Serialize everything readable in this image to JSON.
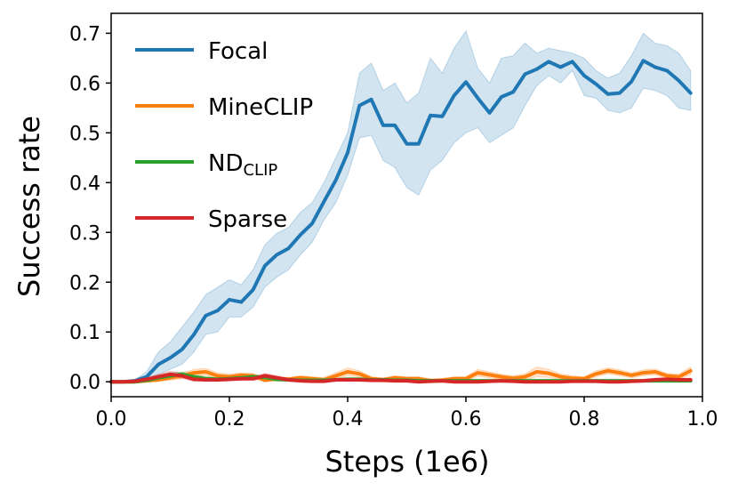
{
  "chart_data": {
    "type": "line",
    "title": "",
    "xlabel": "Steps (1e6)",
    "ylabel": "Success rate",
    "xlim": [
      0.0,
      1.0
    ],
    "ylim": [
      -0.03,
      0.74
    ],
    "xticks": [
      0.0,
      0.2,
      0.4,
      0.6,
      0.8,
      1.0
    ],
    "xtick_labels": [
      "0.0",
      "0.2",
      "0.4",
      "0.6",
      "0.8",
      "1.0"
    ],
    "yticks": [
      0.0,
      0.1,
      0.2,
      0.3,
      0.4,
      0.5,
      0.6,
      0.7
    ],
    "ytick_labels": [
      "0.0",
      "0.1",
      "0.2",
      "0.3",
      "0.4",
      "0.5",
      "0.6",
      "0.7"
    ],
    "grid": false,
    "legend_position": "top-left",
    "x": [
      0.0,
      0.02,
      0.04,
      0.06,
      0.08,
      0.1,
      0.12,
      0.14,
      0.16,
      0.18,
      0.2,
      0.22,
      0.24,
      0.26,
      0.28,
      0.3,
      0.32,
      0.34,
      0.36,
      0.38,
      0.4,
      0.42,
      0.44,
      0.46,
      0.48,
      0.5,
      0.52,
      0.54,
      0.56,
      0.58,
      0.6,
      0.62,
      0.64,
      0.66,
      0.68,
      0.7,
      0.72,
      0.74,
      0.76,
      0.78,
      0.8,
      0.82,
      0.84,
      0.86,
      0.88,
      0.9,
      0.92,
      0.94,
      0.96,
      0.98
    ],
    "series": [
      {
        "name": "Focal",
        "sub": "",
        "color": "#1f77b4",
        "values": [
          0.0,
          0.0,
          0.002,
          0.01,
          0.035,
          0.048,
          0.065,
          0.095,
          0.133,
          0.143,
          0.165,
          0.16,
          0.185,
          0.233,
          0.255,
          0.268,
          0.295,
          0.318,
          0.362,
          0.405,
          0.46,
          0.555,
          0.567,
          0.515,
          0.515,
          0.478,
          0.478,
          0.535,
          0.533,
          0.575,
          0.602,
          0.57,
          0.54,
          0.572,
          0.582,
          0.618,
          0.628,
          0.643,
          0.632,
          0.643,
          0.615,
          0.598,
          0.578,
          0.58,
          0.603,
          0.645,
          0.632,
          0.625,
          0.605,
          0.58
        ],
        "upper": [
          0.0,
          0.0,
          0.004,
          0.02,
          0.06,
          0.08,
          0.11,
          0.14,
          0.175,
          0.19,
          0.205,
          0.195,
          0.225,
          0.275,
          0.298,
          0.31,
          0.34,
          0.36,
          0.4,
          0.45,
          0.5,
          0.62,
          0.64,
          0.585,
          0.6,
          0.56,
          0.58,
          0.65,
          0.62,
          0.67,
          0.705,
          0.63,
          0.6,
          0.65,
          0.655,
          0.68,
          0.66,
          0.67,
          0.665,
          0.66,
          0.65,
          0.625,
          0.61,
          0.62,
          0.655,
          0.7,
          0.68,
          0.675,
          0.66,
          0.625
        ],
        "lower": [
          0.0,
          0.0,
          0.0,
          0.003,
          0.015,
          0.025,
          0.035,
          0.06,
          0.095,
          0.1,
          0.13,
          0.13,
          0.15,
          0.19,
          0.21,
          0.225,
          0.255,
          0.28,
          0.325,
          0.36,
          0.415,
          0.49,
          0.495,
          0.445,
          0.43,
          0.39,
          0.375,
          0.425,
          0.445,
          0.48,
          0.5,
          0.51,
          0.48,
          0.495,
          0.51,
          0.555,
          0.595,
          0.615,
          0.6,
          0.625,
          0.575,
          0.57,
          0.545,
          0.54,
          0.55,
          0.59,
          0.585,
          0.575,
          0.55,
          0.545
        ]
      },
      {
        "name": "MineCLIP",
        "sub": "",
        "color": "#ff7f0e",
        "values": [
          0.0,
          0.0,
          0.0,
          0.002,
          0.004,
          0.008,
          0.012,
          0.018,
          0.02,
          0.012,
          0.01,
          0.013,
          0.012,
          0.003,
          0.006,
          0.005,
          0.008,
          0.006,
          0.004,
          0.012,
          0.02,
          0.016,
          0.006,
          0.004,
          0.008,
          0.006,
          0.006,
          0.002,
          0.003,
          0.006,
          0.006,
          0.018,
          0.014,
          0.01,
          0.007,
          0.01,
          0.02,
          0.017,
          0.01,
          0.007,
          0.006,
          0.016,
          0.022,
          0.018,
          0.013,
          0.018,
          0.02,
          0.012,
          0.01,
          0.022
        ],
        "upper": [
          0.0,
          0.0,
          0.0,
          0.004,
          0.008,
          0.013,
          0.018,
          0.025,
          0.027,
          0.018,
          0.015,
          0.018,
          0.017,
          0.008,
          0.01,
          0.009,
          0.012,
          0.01,
          0.009,
          0.018,
          0.028,
          0.022,
          0.01,
          0.008,
          0.012,
          0.01,
          0.01,
          0.006,
          0.007,
          0.01,
          0.01,
          0.025,
          0.02,
          0.015,
          0.012,
          0.016,
          0.03,
          0.025,
          0.016,
          0.012,
          0.01,
          0.022,
          0.028,
          0.024,
          0.018,
          0.024,
          0.026,
          0.017,
          0.015,
          0.03
        ],
        "lower": [
          0.0,
          0.0,
          0.0,
          0.0,
          0.001,
          0.003,
          0.006,
          0.011,
          0.013,
          0.006,
          0.005,
          0.008,
          0.007,
          0.0,
          0.002,
          0.001,
          0.004,
          0.002,
          0.0,
          0.006,
          0.012,
          0.01,
          0.002,
          0.0,
          0.004,
          0.002,
          0.002,
          0.0,
          0.0,
          0.002,
          0.002,
          0.011,
          0.008,
          0.005,
          0.002,
          0.004,
          0.01,
          0.009,
          0.004,
          0.002,
          0.002,
          0.01,
          0.016,
          0.012,
          0.008,
          0.012,
          0.014,
          0.007,
          0.005,
          0.014
        ]
      },
      {
        "name": "ND",
        "sub": "CLIP",
        "color": "#2ca02c",
        "values": [
          0.0,
          0.0,
          0.0,
          0.003,
          0.008,
          0.012,
          0.015,
          0.01,
          0.006,
          0.005,
          0.006,
          0.008,
          0.01,
          0.009,
          0.005,
          0.004,
          0.003,
          0.003,
          0.003,
          0.004,
          0.005,
          0.005,
          0.004,
          0.004,
          0.003,
          0.003,
          0.002,
          0.002,
          0.002,
          0.002,
          0.002,
          0.002,
          0.002,
          0.002,
          0.002,
          0.002,
          0.002,
          0.002,
          0.002,
          0.002,
          0.002,
          0.002,
          0.002,
          0.002,
          0.002,
          0.002,
          0.002,
          0.002,
          0.002,
          0.002
        ],
        "upper": [
          0.0,
          0.0,
          0.0,
          0.006,
          0.013,
          0.018,
          0.02,
          0.014,
          0.01,
          0.009,
          0.01,
          0.012,
          0.014,
          0.013,
          0.009,
          0.007,
          0.006,
          0.006,
          0.006,
          0.007,
          0.008,
          0.008,
          0.007,
          0.007,
          0.006,
          0.006,
          0.004,
          0.004,
          0.004,
          0.004,
          0.004,
          0.004,
          0.004,
          0.004,
          0.004,
          0.004,
          0.004,
          0.004,
          0.004,
          0.004,
          0.004,
          0.004,
          0.004,
          0.004,
          0.004,
          0.004,
          0.004,
          0.004,
          0.004,
          0.004
        ],
        "lower": [
          0.0,
          0.0,
          0.0,
          0.0,
          0.003,
          0.006,
          0.01,
          0.006,
          0.002,
          0.001,
          0.002,
          0.004,
          0.006,
          0.005,
          0.001,
          0.001,
          0.0,
          0.0,
          0.0,
          0.001,
          0.002,
          0.002,
          0.001,
          0.001,
          0.0,
          0.0,
          0.0,
          0.0,
          0.0,
          0.0,
          0.0,
          0.0,
          0.0,
          0.0,
          0.0,
          0.0,
          0.0,
          0.0,
          0.0,
          0.0,
          0.0,
          0.0,
          0.0,
          0.0,
          0.0,
          0.0,
          0.0,
          0.0,
          0.0,
          0.0
        ]
      },
      {
        "name": "Sparse",
        "sub": "",
        "color": "#d62728",
        "values": [
          0.0,
          0.0,
          0.001,
          0.005,
          0.01,
          0.015,
          0.012,
          0.005,
          0.004,
          0.004,
          0.005,
          0.006,
          0.006,
          0.012,
          0.008,
          0.004,
          0.002,
          0.001,
          0.001,
          0.004,
          0.004,
          0.004,
          0.003,
          0.003,
          0.002,
          0.002,
          0.0,
          0.001,
          0.002,
          0.0,
          0.0,
          0.0,
          0.001,
          0.002,
          0.001,
          0.0,
          0.0,
          0.0,
          0.0,
          0.001,
          0.001,
          0.001,
          0.0,
          0.0,
          0.001,
          0.002,
          0.004,
          0.005,
          0.004,
          0.004
        ],
        "upper": [
          0.0,
          0.0,
          0.002,
          0.008,
          0.015,
          0.021,
          0.017,
          0.009,
          0.007,
          0.007,
          0.008,
          0.009,
          0.009,
          0.017,
          0.012,
          0.007,
          0.005,
          0.003,
          0.003,
          0.007,
          0.007,
          0.007,
          0.006,
          0.006,
          0.005,
          0.005,
          0.002,
          0.003,
          0.005,
          0.002,
          0.002,
          0.002,
          0.003,
          0.005,
          0.003,
          0.002,
          0.002,
          0.002,
          0.002,
          0.003,
          0.003,
          0.003,
          0.002,
          0.002,
          0.003,
          0.005,
          0.007,
          0.008,
          0.007,
          0.007
        ],
        "lower": [
          0.0,
          0.0,
          0.0,
          0.002,
          0.005,
          0.009,
          0.007,
          0.001,
          0.001,
          0.001,
          0.002,
          0.003,
          0.003,
          0.007,
          0.004,
          0.001,
          0.0,
          0.0,
          0.0,
          0.001,
          0.001,
          0.001,
          0.0,
          0.0,
          0.0,
          0.0,
          0.0,
          0.0,
          0.0,
          0.0,
          0.0,
          0.0,
          0.0,
          0.0,
          0.0,
          0.0,
          0.0,
          0.0,
          0.0,
          0.0,
          0.0,
          0.0,
          0.0,
          0.0,
          0.0,
          0.0,
          0.001,
          0.002,
          0.001,
          0.001
        ]
      }
    ]
  }
}
